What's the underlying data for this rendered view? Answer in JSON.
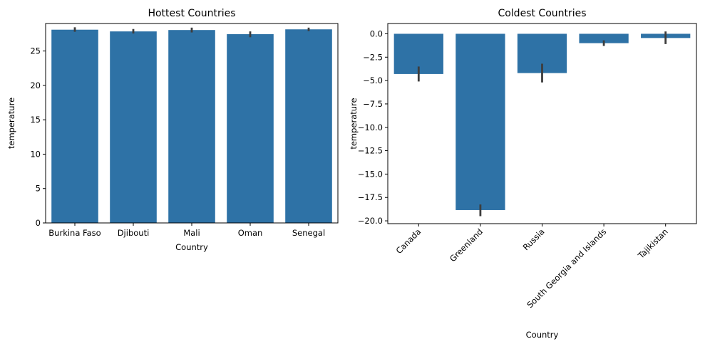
{
  "chart_data": [
    {
      "type": "bar",
      "title": "Hottest Countries",
      "xlabel": "Country",
      "ylabel": "temperature",
      "categories": [
        "Burkina Faso",
        "Djibouti",
        "Mali",
        "Oman",
        "Senegal"
      ],
      "values": [
        28.1,
        27.85,
        28.05,
        27.45,
        28.15
      ],
      "ci_low": [
        27.8,
        27.55,
        27.7,
        27.0,
        27.9
      ],
      "ci_high": [
        28.45,
        28.2,
        28.4,
        27.85,
        28.4
      ],
      "ylim": [
        0,
        29.0
      ],
      "yticks": [
        0,
        5,
        10,
        15,
        20,
        25
      ],
      "ytick_labels": [
        "0",
        "5",
        "10",
        "15",
        "20",
        "25"
      ],
      "xtick_rotation": 0,
      "bar_color": "#2e72a6",
      "errorbar_color": "#3d3d3d",
      "grid": false
    },
    {
      "type": "bar",
      "title": "Coldest Countries",
      "xlabel": "Country",
      "ylabel": "temperature",
      "categories": [
        "Canada",
        "Greenland",
        "Russia",
        "South Georgia and Islands",
        "Tajikistan"
      ],
      "values": [
        -4.3,
        -18.85,
        -4.2,
        -1.0,
        -0.45
      ],
      "ci_low": [
        -5.1,
        -19.5,
        -5.2,
        -1.3,
        -1.1
      ],
      "ci_high": [
        -3.5,
        -18.25,
        -3.2,
        -0.7,
        0.25
      ],
      "ylim": [
        -20.3,
        1.1
      ],
      "yticks": [
        0.0,
        -2.5,
        -5.0,
        -7.5,
        -10.0,
        -12.5,
        -15.0,
        -17.5,
        -20.0
      ],
      "ytick_labels": [
        "0.0",
        "−2.5",
        "−5.0",
        "−7.5",
        "−10.0",
        "−12.5",
        "−15.0",
        "−17.5",
        "−20.0"
      ],
      "xtick_rotation": -45,
      "bar_color": "#2e72a6",
      "errorbar_color": "#3d3d3d",
      "grid": false
    }
  ]
}
